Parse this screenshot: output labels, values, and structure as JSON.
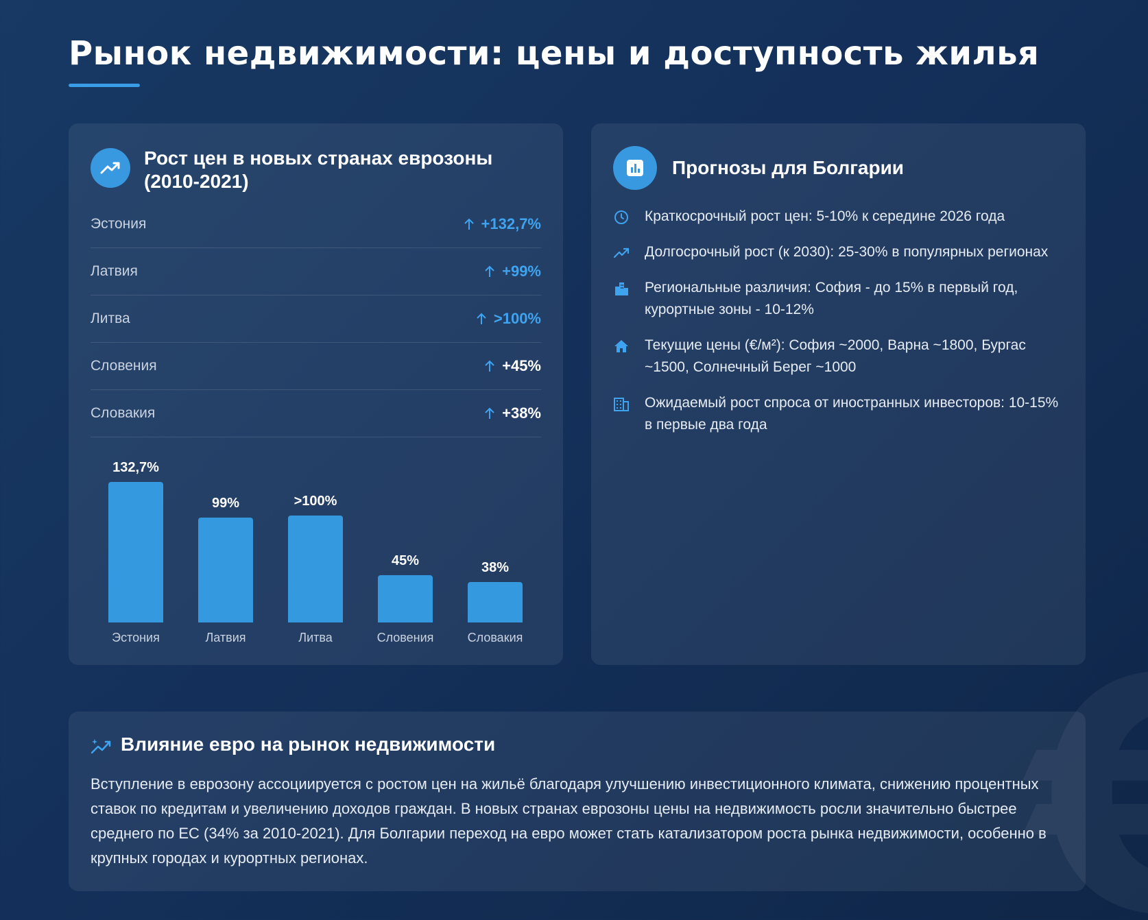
{
  "page": {
    "title": "Рынок недвижимости: цены и доступность жилья"
  },
  "growth_card": {
    "title_line1": "Рост цен в новых странах еврозоны",
    "title_line2": "(2010-2021)",
    "icon": "trending-up-icon",
    "rows": [
      {
        "country": "Эстония",
        "value": "+132,7%",
        "color": "blue"
      },
      {
        "country": "Латвия",
        "value": "+99%",
        "color": "blue"
      },
      {
        "country": "Литва",
        "value": ">100%",
        "color": "blue"
      },
      {
        "country": "Словения",
        "value": "+45%",
        "color": "white"
      },
      {
        "country": "Словакия",
        "value": "+38%",
        "color": "white"
      }
    ]
  },
  "chart_data": {
    "type": "bar",
    "categories": [
      "Эстония",
      "Латвия",
      "Литва",
      "Словения",
      "Словакия"
    ],
    "values": [
      132.7,
      99,
      101,
      45,
      38
    ],
    "data_labels": [
      "132,7%",
      "99%",
      ">100%",
      "45%",
      "38%"
    ],
    "ylim": [
      0,
      140
    ],
    "bar_color": "#3599df"
  },
  "forecast_card": {
    "title": "Прогнозы для Болгарии",
    "icon": "bar-chart-icon",
    "items": [
      {
        "icon": "clock-icon",
        "text": "Краткосрочный рост цен: 5-10% к середине 2026 года"
      },
      {
        "icon": "trending-up-icon",
        "text": "Долгосрочный рост (к 2030): 25-30% в популярных регионах"
      },
      {
        "icon": "city-icon",
        "text": "Региональные различия: София - до 15% в первый год, курортные зоны - 10-12%"
      },
      {
        "icon": "home-icon",
        "text": "Текущие цены (€/м²): София ~2000, Варна ~1800, Бургас ~1500, Солнечный Берег ~1000"
      },
      {
        "icon": "office-building-icon",
        "text": "Ожидаемый рост спроса от иностранных инвесторов: 10-15% в первые два года"
      }
    ]
  },
  "impact_card": {
    "title": "Влияние евро на рынок недвижимости",
    "icon": "sparkle-trend-icon",
    "text": "Вступление в еврозону ассоциируется с ростом цен на жильё благодаря улучшению инвестиционного климата, снижению процентных ставок по кредитам и увеличению доходов граждан. В новых странах еврозоны цены на недвижимость росли значительно быстрее среднего по ЕС (34% за 2010-2021). Для Болгарии переход на евро может стать катализатором роста рынка недвижимости, особенно в крупных городах и курортных регионах."
  },
  "colors": {
    "accent": "#3a9be6",
    "background": "#14305a"
  }
}
